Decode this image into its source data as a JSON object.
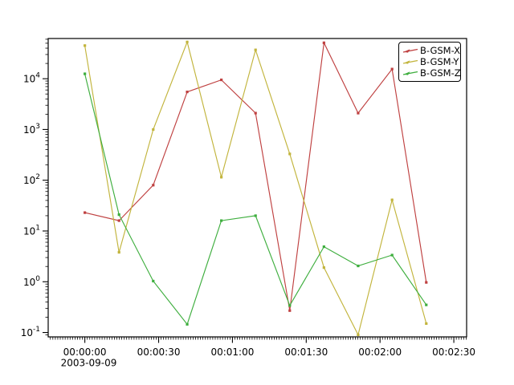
{
  "window": {
    "background": "#ffffff",
    "frame_color": "#000000"
  },
  "chart_data": {
    "type": "line",
    "title": "",
    "grid": false,
    "x_axis": {
      "date_label": "2003-09-09",
      "ticks": [
        {
          "seconds": 0,
          "label": "00:00:00"
        },
        {
          "seconds": 30,
          "label": "00:00:30"
        },
        {
          "seconds": 60,
          "label": "00:01:00"
        },
        {
          "seconds": 90,
          "label": "00:01:30"
        },
        {
          "seconds": 120,
          "label": "00:02:00"
        },
        {
          "seconds": 150,
          "label": "00:02:30"
        }
      ],
      "minor_tick_step_seconds": 1,
      "lim_seconds": [
        -14.9,
        155.2
      ]
    },
    "y_axis": {
      "scale": "log",
      "tick_exponents": [
        4,
        3,
        2,
        1,
        0,
        -1
      ],
      "lim": [
        0.082,
        62000
      ]
    },
    "samples_seconds": [
      0,
      13.9,
      27.8,
      41.6,
      55.5,
      69.4,
      83.3,
      97.2,
      111.1,
      124.9,
      138.8
    ],
    "series": [
      {
        "name": "B-GSM-X",
        "color": "#bf4040",
        "values": [
          23,
          16,
          80,
          5500,
          9500,
          2100,
          0.27,
          51000,
          2100,
          15500,
          0.97
        ]
      },
      {
        "name": "B-GSM-Y",
        "color": "#c2b43c",
        "values": [
          45000,
          3.8,
          1000,
          53000,
          115,
          37000,
          330,
          1.9,
          0.09,
          41,
          0.15
        ]
      },
      {
        "name": "B-GSM-Z",
        "color": "#3eae3e",
        "values": [
          12500,
          21,
          1.03,
          0.145,
          16,
          20,
          0.34,
          4.9,
          2.05,
          3.35,
          0.35
        ]
      }
    ],
    "legend_position": "top-right"
  }
}
